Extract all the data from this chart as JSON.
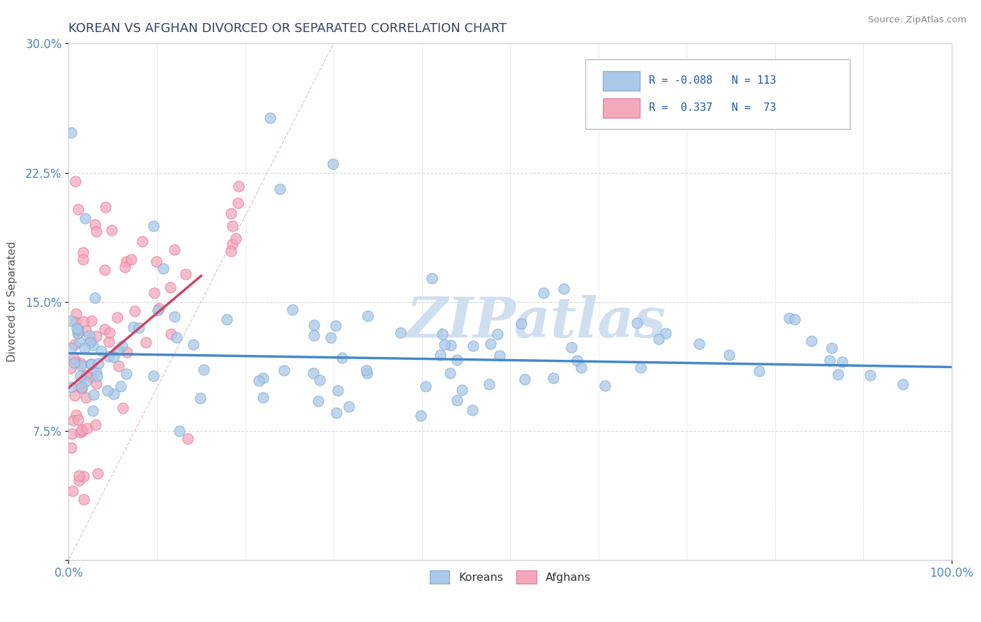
{
  "title": "KOREAN VS AFGHAN DIVORCED OR SEPARATED CORRELATION CHART",
  "source": "Source: ZipAtlas.com",
  "ylabel": "Divorced or Separated",
  "xlim": [
    0,
    100
  ],
  "ylim": [
    0,
    30
  ],
  "xticks": [
    0,
    100
  ],
  "yticks": [
    0,
    7.5,
    15,
    22.5,
    30
  ],
  "xtick_labels": [
    "0.0%",
    "100.0%"
  ],
  "ytick_labels": [
    "",
    "7.5%",
    "15.0%",
    "22.5%",
    "30.0%"
  ],
  "korean_color": "#aac8e8",
  "afghan_color": "#f4a8bc",
  "korean_edge": "#7aadd4",
  "afghan_edge": "#e87898",
  "trend_korean_color": "#4488cc",
  "trend_afghan_color": "#cc4466",
  "watermark_color": "#d0dff0",
  "watermark": "ZIPatlas",
  "grid_color": "#d8d8d8"
}
